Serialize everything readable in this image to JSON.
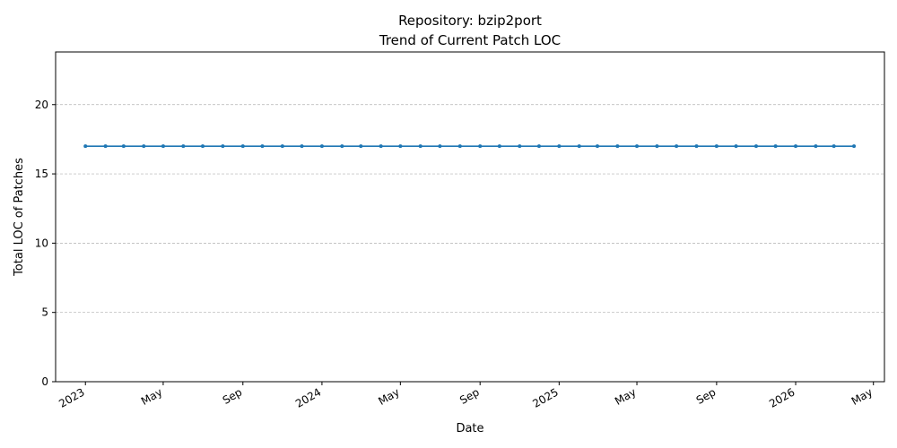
{
  "chart_data": {
    "type": "line",
    "title": "Repository: bzip2port",
    "subtitle": "Trend of Current Patch LOC",
    "xlabel": "Date",
    "ylabel": "Total LOC of Patches",
    "ylim": [
      0,
      23.8
    ],
    "xlim": [
      "2022-11-16",
      "2026-05-18"
    ],
    "y_ticks": [
      0,
      5,
      10,
      15,
      20
    ],
    "x_ticks": [
      {
        "date": "2023-01-01",
        "label": "2023"
      },
      {
        "date": "2023-05-01",
        "label": "May"
      },
      {
        "date": "2023-09-01",
        "label": "Sep"
      },
      {
        "date": "2024-01-01",
        "label": "2024"
      },
      {
        "date": "2024-05-01",
        "label": "May"
      },
      {
        "date": "2024-09-01",
        "label": "Sep"
      },
      {
        "date": "2025-01-01",
        "label": "2025"
      },
      {
        "date": "2025-05-01",
        "label": "May"
      },
      {
        "date": "2025-09-01",
        "label": "Sep"
      },
      {
        "date": "2026-01-01",
        "label": "2026"
      },
      {
        "date": "2026-05-01",
        "label": "May"
      }
    ],
    "grid": "y-dashed",
    "series_color": "#1f77b4",
    "series": [
      {
        "x": [
          "2023-01-01",
          "2023-02-01",
          "2023-03-01",
          "2023-04-01",
          "2023-05-01",
          "2023-06-01",
          "2023-07-01",
          "2023-08-01",
          "2023-09-01",
          "2023-10-01",
          "2023-11-01",
          "2023-12-01",
          "2024-01-01",
          "2024-02-01",
          "2024-03-01",
          "2024-04-01",
          "2024-05-01",
          "2024-06-01",
          "2024-07-01",
          "2024-08-01",
          "2024-09-01",
          "2024-10-01",
          "2024-11-01",
          "2024-12-01",
          "2025-01-01",
          "2025-02-01",
          "2025-03-01",
          "2025-04-01",
          "2025-05-01",
          "2025-06-01",
          "2025-07-01",
          "2025-08-01",
          "2025-09-01",
          "2025-10-01",
          "2025-11-01",
          "2025-12-01",
          "2026-01-01",
          "2026-02-01",
          "2026-03-01",
          "2026-04-01"
        ],
        "values": [
          17,
          17,
          17,
          17,
          17,
          17,
          17,
          17,
          17,
          17,
          17,
          17,
          17,
          17,
          17,
          17,
          17,
          17,
          17,
          17,
          17,
          17,
          17,
          17,
          17,
          17,
          17,
          17,
          17,
          17,
          17,
          17,
          17,
          17,
          17,
          17,
          17,
          17,
          17,
          17
        ]
      }
    ]
  }
}
